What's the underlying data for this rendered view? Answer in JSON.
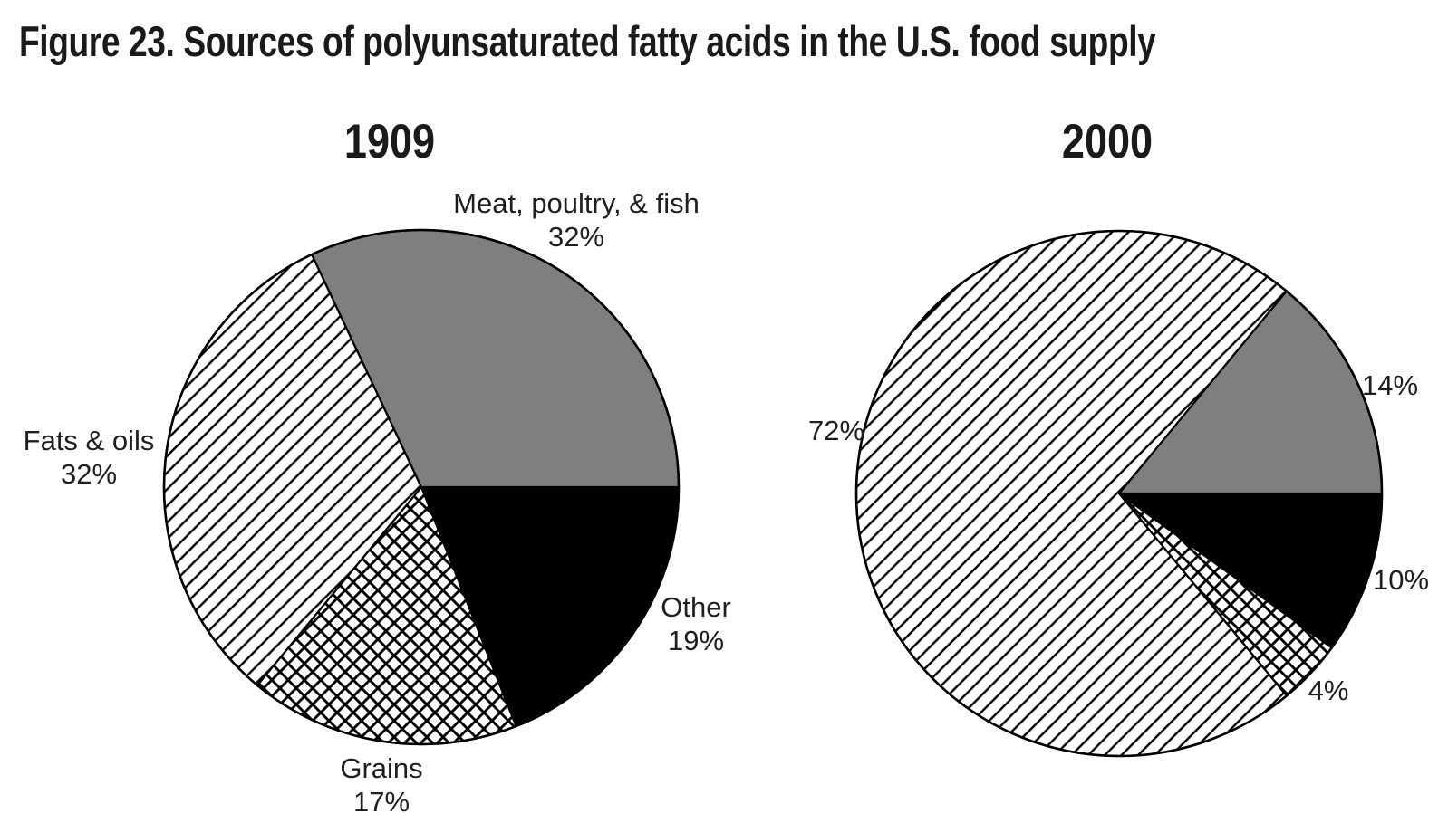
{
  "title": "Figure 23. Sources of polyunsaturated fatty acids in the U.S. food supply",
  "colors": {
    "slice_gray": "#7f7f7f",
    "slice_black": "#000000",
    "outline": "#000000",
    "text": "#1c1c1c",
    "background": "#ffffff"
  },
  "chart_data": [
    {
      "type": "pie",
      "title": "1909",
      "start_angle_deg": 0,
      "start_at": "east",
      "direction": "clockwise",
      "slices": [
        {
          "label": "Other",
          "value": 19,
          "pct_label": "19%",
          "fill": "black"
        },
        {
          "label": "Grains",
          "value": 17,
          "pct_label": "17%",
          "fill": "cross-hatch"
        },
        {
          "label": "Fats & oils",
          "value": 32,
          "pct_label": "32%",
          "fill": "diagonal-hatch"
        },
        {
          "label": "Meat, poultry, & fish",
          "value": 32,
          "pct_label": "32%",
          "fill": "gray"
        }
      ]
    },
    {
      "type": "pie",
      "title": "2000",
      "start_angle_deg": 0,
      "start_at": "east",
      "direction": "clockwise",
      "slices": [
        {
          "label": "Other",
          "value": 10,
          "pct_label": "10%",
          "fill": "black"
        },
        {
          "label": "Grains",
          "value": 4,
          "pct_label": "4%",
          "fill": "cross-hatch"
        },
        {
          "label": "Fats & oils",
          "value": 72,
          "pct_label": "72%",
          "fill": "diagonal-hatch"
        },
        {
          "label": "Meat, poultry, & fish",
          "value": 14,
          "pct_label": "14%",
          "fill": "gray"
        }
      ]
    }
  ]
}
